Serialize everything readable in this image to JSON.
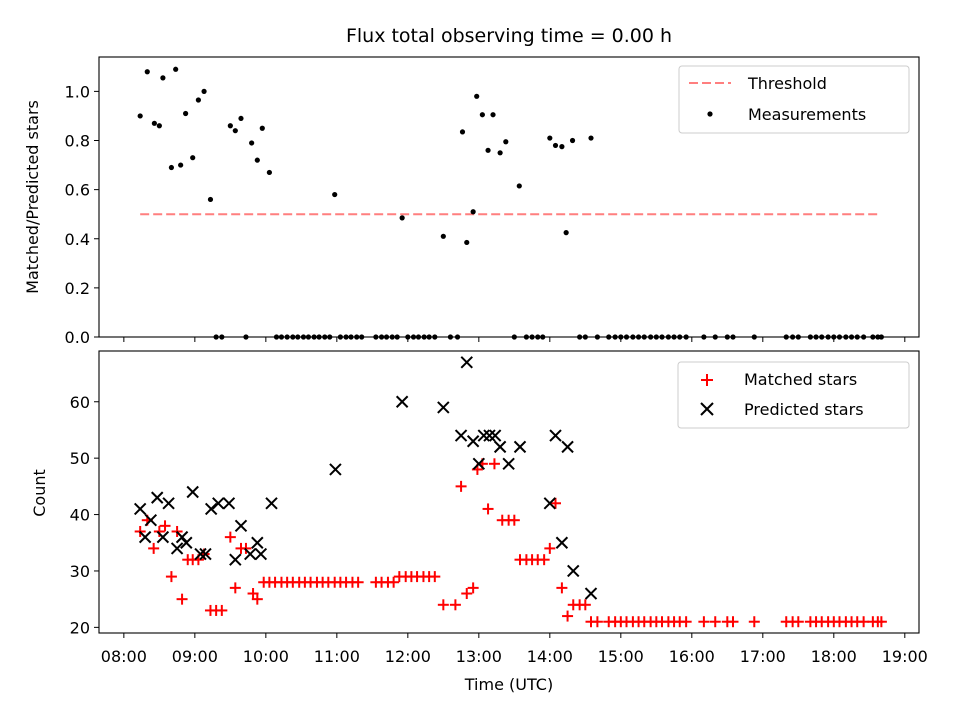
{
  "colors": {
    "threshold": "#ff7f7f",
    "measurements": "#000000",
    "matched": "#ff0000",
    "predicted": "#000000"
  },
  "chart_data": [
    {
      "type": "scatter",
      "title": "Flux total observing time = 0.00 h",
      "xlabel": "",
      "ylabel": "Matched/Predicted stars",
      "ylim": [
        0,
        1.14
      ],
      "xlim": [
        7.65,
        19.2
      ],
      "yticks": [
        "0.0",
        "0.2",
        "0.4",
        "0.6",
        "0.8",
        "1.0"
      ],
      "ytick_values": [
        0,
        0.2,
        0.4,
        0.6,
        0.8,
        1.0
      ],
      "legend_position": "top-right",
      "threshold": {
        "name": "Threshold",
        "value": 0.5,
        "x_range": [
          8.23,
          18.65
        ]
      },
      "series": [
        {
          "name": "Measurements",
          "points": [
            [
              8.23,
              0.9
            ],
            [
              8.33,
              1.08
            ],
            [
              8.43,
              0.87
            ],
            [
              8.5,
              0.86
            ],
            [
              8.55,
              1.055
            ],
            [
              8.67,
              0.69
            ],
            [
              8.73,
              1.09
            ],
            [
              8.8,
              0.7
            ],
            [
              8.87,
              0.91
            ],
            [
              8.97,
              0.73
            ],
            [
              9.05,
              0.965
            ],
            [
              9.13,
              1.0
            ],
            [
              9.22,
              0.56
            ],
            [
              9.3,
              0.0
            ],
            [
              9.38,
              0.0
            ],
            [
              9.5,
              0.86
            ],
            [
              9.57,
              0.84
            ],
            [
              9.65,
              0.89
            ],
            [
              9.72,
              0.0
            ],
            [
              9.8,
              0.79
            ],
            [
              9.88,
              0.72
            ],
            [
              9.95,
              0.85
            ],
            [
              10.05,
              0.67
            ],
            [
              10.15,
              0.0
            ],
            [
              10.22,
              0.0
            ],
            [
              10.3,
              0.0
            ],
            [
              10.38,
              0.0
            ],
            [
              10.45,
              0.0
            ],
            [
              10.53,
              0.0
            ],
            [
              10.6,
              0.0
            ],
            [
              10.68,
              0.0
            ],
            [
              10.75,
              0.0
            ],
            [
              10.83,
              0.0
            ],
            [
              10.9,
              0.0
            ],
            [
              10.97,
              0.58
            ],
            [
              11.05,
              0.0
            ],
            [
              11.13,
              0.0
            ],
            [
              11.2,
              0.0
            ],
            [
              11.28,
              0.0
            ],
            [
              11.35,
              0.0
            ],
            [
              11.55,
              0.0
            ],
            [
              11.63,
              0.0
            ],
            [
              11.7,
              0.0
            ],
            [
              11.78,
              0.0
            ],
            [
              11.85,
              0.0
            ],
            [
              11.92,
              0.485
            ],
            [
              12.0,
              0.0
            ],
            [
              12.08,
              0.0
            ],
            [
              12.15,
              0.0
            ],
            [
              12.23,
              0.0
            ],
            [
              12.3,
              0.0
            ],
            [
              12.38,
              0.0
            ],
            [
              12.5,
              0.41
            ],
            [
              12.6,
              0.0
            ],
            [
              12.7,
              0.0
            ],
            [
              12.77,
              0.835
            ],
            [
              12.83,
              0.385
            ],
            [
              12.92,
              0.51
            ],
            [
              12.97,
              0.98
            ],
            [
              13.05,
              0.905
            ],
            [
              13.13,
              0.76
            ],
            [
              13.2,
              0.905
            ],
            [
              13.3,
              0.75
            ],
            [
              13.38,
              0.795
            ],
            [
              13.5,
              0.0
            ],
            [
              13.57,
              0.615
            ],
            [
              13.67,
              0.0
            ],
            [
              13.75,
              0.0
            ],
            [
              13.83,
              0.0
            ],
            [
              13.9,
              0.0
            ],
            [
              14.0,
              0.81
            ],
            [
              14.08,
              0.78
            ],
            [
              14.17,
              0.775
            ],
            [
              14.23,
              0.425
            ],
            [
              14.32,
              0.8
            ],
            [
              14.42,
              0.0
            ],
            [
              14.5,
              0.0
            ],
            [
              14.58,
              0.81
            ],
            [
              14.67,
              0.0
            ],
            [
              14.83,
              0.0
            ],
            [
              14.92,
              0.0
            ],
            [
              15.0,
              0.0
            ],
            [
              15.08,
              0.0
            ],
            [
              15.17,
              0.0
            ],
            [
              15.25,
              0.0
            ],
            [
              15.33,
              0.0
            ],
            [
              15.42,
              0.0
            ],
            [
              15.5,
              0.0
            ],
            [
              15.58,
              0.0
            ],
            [
              15.67,
              0.0
            ],
            [
              15.75,
              0.0
            ],
            [
              15.83,
              0.0
            ],
            [
              15.92,
              0.0
            ],
            [
              16.17,
              0.0
            ],
            [
              16.33,
              0.0
            ],
            [
              16.5,
              0.0
            ],
            [
              16.58,
              0.0
            ],
            [
              16.88,
              0.0
            ],
            [
              17.33,
              0.0
            ],
            [
              17.42,
              0.0
            ],
            [
              17.5,
              0.0
            ],
            [
              17.67,
              0.0
            ],
            [
              17.75,
              0.0
            ],
            [
              17.83,
              0.0
            ],
            [
              17.92,
              0.0
            ],
            [
              18.0,
              0.0
            ],
            [
              18.08,
              0.0
            ],
            [
              18.17,
              0.0
            ],
            [
              18.25,
              0.0
            ],
            [
              18.33,
              0.0
            ],
            [
              18.42,
              0.0
            ],
            [
              18.55,
              0.0
            ],
            [
              18.62,
              0.0
            ],
            [
              18.67,
              0.0
            ]
          ]
        }
      ]
    },
    {
      "type": "scatter",
      "title": "",
      "xlabel": "Time (UTC)",
      "ylabel": "Count",
      "ylim": [
        19,
        69
      ],
      "xlim": [
        7.65,
        19.2
      ],
      "yticks": [
        "20",
        "30",
        "40",
        "50",
        "60"
      ],
      "ytick_values": [
        20,
        30,
        40,
        50,
        60
      ],
      "xticks": [
        "08:00",
        "09:00",
        "10:00",
        "11:00",
        "12:00",
        "13:00",
        "14:00",
        "15:00",
        "16:00",
        "17:00",
        "18:00",
        "19:00"
      ],
      "xtick_values": [
        8,
        9,
        10,
        11,
        12,
        13,
        14,
        15,
        16,
        17,
        18,
        19
      ],
      "legend_position": "top-right",
      "series": [
        {
          "name": "Matched stars",
          "points": [
            [
              8.23,
              37
            ],
            [
              8.33,
              39
            ],
            [
              8.42,
              34
            ],
            [
              8.5,
              37
            ],
            [
              8.58,
              38
            ],
            [
              8.67,
              29
            ],
            [
              8.75,
              37
            ],
            [
              8.82,
              25
            ],
            [
              8.9,
              32
            ],
            [
              8.97,
              32
            ],
            [
              9.05,
              32
            ],
            [
              9.13,
              33
            ],
            [
              9.22,
              23
            ],
            [
              9.3,
              23
            ],
            [
              9.38,
              23
            ],
            [
              9.5,
              36
            ],
            [
              9.57,
              27
            ],
            [
              9.65,
              34
            ],
            [
              9.72,
              34
            ],
            [
              9.82,
              26
            ],
            [
              9.88,
              25
            ],
            [
              9.97,
              28
            ],
            [
              10.05,
              28
            ],
            [
              10.13,
              28
            ],
            [
              10.22,
              28
            ],
            [
              10.3,
              28
            ],
            [
              10.38,
              28
            ],
            [
              10.47,
              28
            ],
            [
              10.55,
              28
            ],
            [
              10.63,
              28
            ],
            [
              10.72,
              28
            ],
            [
              10.8,
              28
            ],
            [
              10.88,
              28
            ],
            [
              10.97,
              28
            ],
            [
              11.05,
              28
            ],
            [
              11.13,
              28
            ],
            [
              11.22,
              28
            ],
            [
              11.3,
              28
            ],
            [
              11.55,
              28
            ],
            [
              11.63,
              28
            ],
            [
              11.72,
              28
            ],
            [
              11.8,
              28
            ],
            [
              11.88,
              29
            ],
            [
              11.97,
              29
            ],
            [
              12.05,
              29
            ],
            [
              12.13,
              29
            ],
            [
              12.22,
              29
            ],
            [
              12.3,
              29
            ],
            [
              12.38,
              29
            ],
            [
              12.5,
              24
            ],
            [
              12.67,
              24
            ],
            [
              12.75,
              45
            ],
            [
              12.83,
              26
            ],
            [
              12.92,
              27
            ],
            [
              12.98,
              48
            ],
            [
              13.05,
              49
            ],
            [
              13.13,
              41
            ],
            [
              13.22,
              49
            ],
            [
              13.33,
              39
            ],
            [
              13.42,
              39
            ],
            [
              13.5,
              39
            ],
            [
              13.58,
              32
            ],
            [
              13.67,
              32
            ],
            [
              13.75,
              32
            ],
            [
              13.83,
              32
            ],
            [
              13.92,
              32
            ],
            [
              14.0,
              34
            ],
            [
              14.08,
              42
            ],
            [
              14.17,
              27
            ],
            [
              14.25,
              22
            ],
            [
              14.33,
              24
            ],
            [
              14.42,
              24
            ],
            [
              14.5,
              24
            ],
            [
              14.58,
              21
            ],
            [
              14.67,
              21
            ],
            [
              14.83,
              21
            ],
            [
              14.92,
              21
            ],
            [
              15.0,
              21
            ],
            [
              15.08,
              21
            ],
            [
              15.17,
              21
            ],
            [
              15.25,
              21
            ],
            [
              15.33,
              21
            ],
            [
              15.42,
              21
            ],
            [
              15.5,
              21
            ],
            [
              15.58,
              21
            ],
            [
              15.67,
              21
            ],
            [
              15.75,
              21
            ],
            [
              15.83,
              21
            ],
            [
              15.92,
              21
            ],
            [
              16.17,
              21
            ],
            [
              16.33,
              21
            ],
            [
              16.5,
              21
            ],
            [
              16.58,
              21
            ],
            [
              16.88,
              21
            ],
            [
              17.33,
              21
            ],
            [
              17.42,
              21
            ],
            [
              17.5,
              21
            ],
            [
              17.67,
              21
            ],
            [
              17.75,
              21
            ],
            [
              17.83,
              21
            ],
            [
              17.92,
              21
            ],
            [
              18.0,
              21
            ],
            [
              18.08,
              21
            ],
            [
              18.17,
              21
            ],
            [
              18.25,
              21
            ],
            [
              18.33,
              21
            ],
            [
              18.42,
              21
            ],
            [
              18.55,
              21
            ],
            [
              18.62,
              21
            ],
            [
              18.67,
              21
            ]
          ]
        },
        {
          "name": "Predicted stars",
          "points": [
            [
              8.23,
              41
            ],
            [
              8.3,
              36
            ],
            [
              8.38,
              39
            ],
            [
              8.47,
              43
            ],
            [
              8.55,
              36
            ],
            [
              8.63,
              42
            ],
            [
              8.75,
              34
            ],
            [
              8.82,
              36
            ],
            [
              8.88,
              35
            ],
            [
              8.97,
              44
            ],
            [
              9.08,
              33
            ],
            [
              9.15,
              33
            ],
            [
              9.23,
              41
            ],
            [
              9.33,
              42
            ],
            [
              9.48,
              42
            ],
            [
              9.57,
              32
            ],
            [
              9.65,
              38
            ],
            [
              9.78,
              33
            ],
            [
              9.88,
              35
            ],
            [
              9.93,
              33
            ],
            [
              10.08,
              42
            ],
            [
              10.98,
              48
            ],
            [
              11.92,
              60
            ],
            [
              12.5,
              59
            ],
            [
              12.75,
              54
            ],
            [
              12.83,
              67
            ],
            [
              12.92,
              53
            ],
            [
              13.0,
              49
            ],
            [
              13.07,
              54
            ],
            [
              13.15,
              54
            ],
            [
              13.23,
              54
            ],
            [
              13.3,
              52
            ],
            [
              13.42,
              49
            ],
            [
              13.58,
              52
            ],
            [
              14.0,
              42
            ],
            [
              14.08,
              54
            ],
            [
              14.17,
              35
            ],
            [
              14.25,
              52
            ],
            [
              14.33,
              30
            ],
            [
              14.58,
              26
            ]
          ]
        }
      ]
    }
  ]
}
